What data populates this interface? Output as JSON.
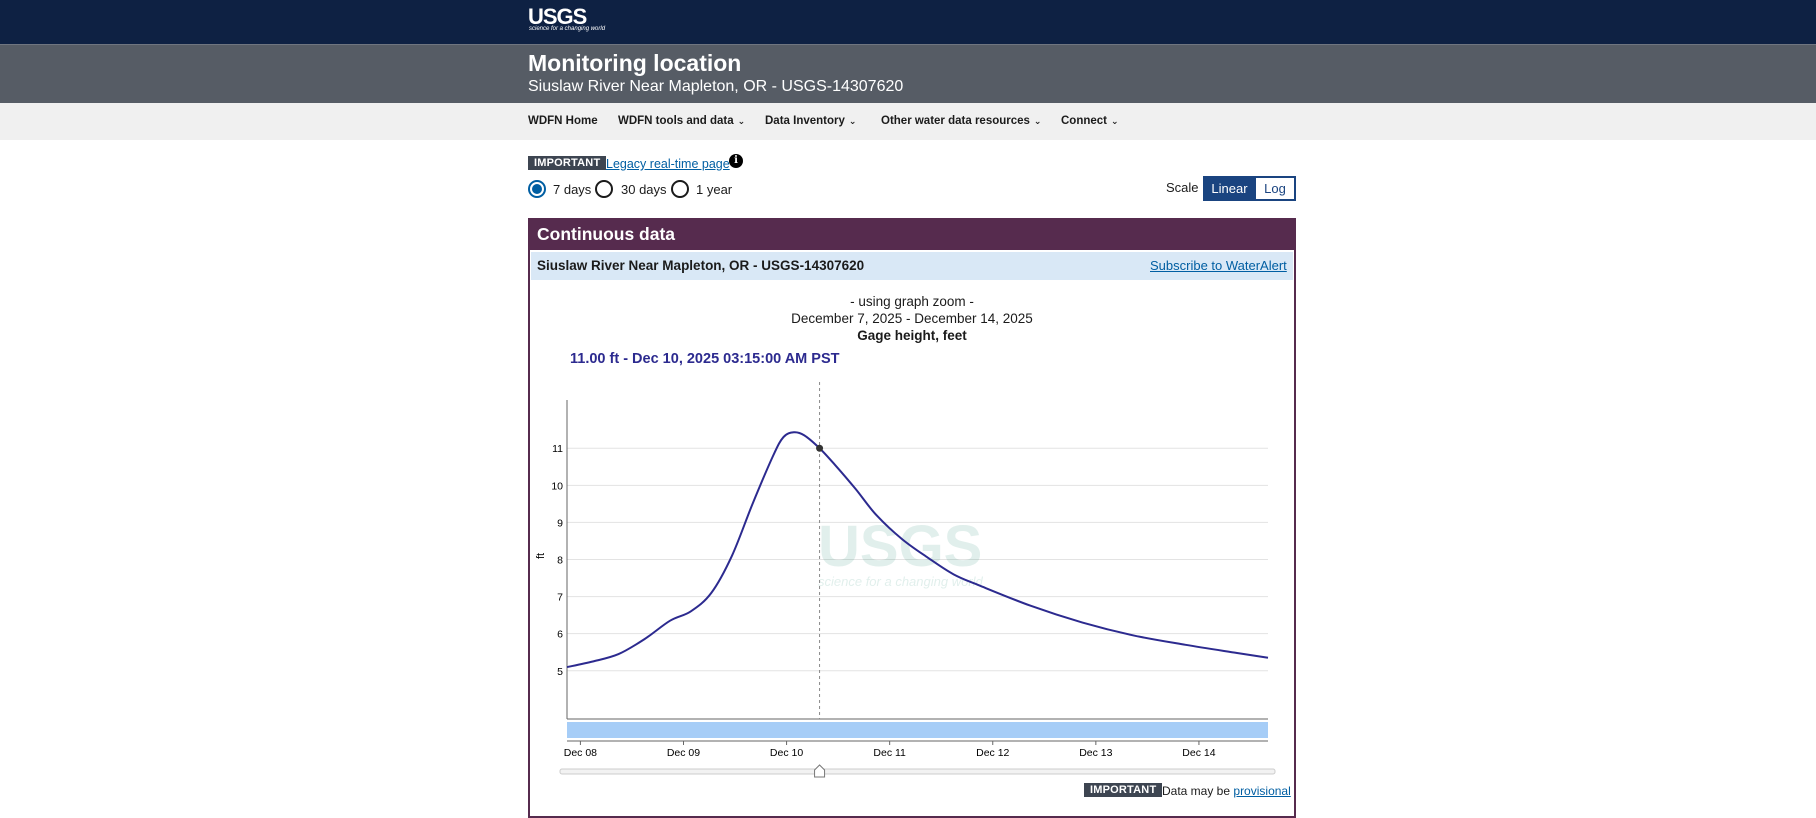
{
  "header": {
    "logo_text": "USGS",
    "logo_tagline": "science for a changing world",
    "title": "Monitoring location",
    "subtitle": "Siuslaw River Near Mapleton, OR - USGS-14307620"
  },
  "nav": {
    "items": [
      {
        "label": "WDFN Home",
        "dropdown": false
      },
      {
        "label": "WDFN tools and data",
        "dropdown": true
      },
      {
        "label": "Data Inventory",
        "dropdown": true
      },
      {
        "label": "Other water data resources",
        "dropdown": true
      },
      {
        "label": "Connect",
        "dropdown": true
      }
    ]
  },
  "notice": {
    "tag": "IMPORTANT",
    "link": "Legacy real-time page"
  },
  "period": {
    "options": [
      "7 days",
      "30 days",
      "1 year"
    ],
    "selected": "7 days"
  },
  "scale": {
    "label": "Scale",
    "options": [
      "Linear",
      "Log"
    ],
    "selected": "Linear"
  },
  "panel": {
    "title": "Continuous data",
    "site": "Siuslaw River Near Mapleton, OR - USGS-14307620",
    "subscribe": "Subscribe to WaterAlert"
  },
  "graph": {
    "zoom_note": "- using graph zoom -",
    "date_range": "December 7, 2025 - December 14, 2025",
    "parameter": "Gage height, feet",
    "readout": "11.00 ft - Dec 10, 2025 03:15:00 AM PST",
    "watermark": "USGS",
    "watermark_tagline": "science for a changing world"
  },
  "chart_data": {
    "type": "line",
    "title": "",
    "ylabel": "ft",
    "xlabel": "",
    "x_ticks": [
      "Dec 08",
      "Dec 09",
      "Dec 10",
      "Dec 11",
      "Dec 12",
      "Dec 13",
      "Dec 14"
    ],
    "y_ticks": [
      5,
      6,
      7,
      8,
      9,
      10,
      11
    ],
    "xlim": [
      0,
      6.8
    ],
    "ylim": [
      3.7,
      12.3
    ],
    "series": [
      {
        "color": "#2c2a8f",
        "x": [
          0,
          0.25,
          0.5,
          0.75,
          1.0,
          1.2,
          1.4,
          1.6,
          1.8,
          2.0,
          2.1,
          2.2,
          2.3,
          2.45,
          2.6,
          2.8,
          3.0,
          3.25,
          3.5,
          3.75,
          4.0,
          4.5,
          5.0,
          5.5,
          6.0,
          6.5,
          6.8
        ],
        "y": [
          5.1,
          5.25,
          5.45,
          5.85,
          6.35,
          6.6,
          7.1,
          8.1,
          9.5,
          10.8,
          11.3,
          11.43,
          11.35,
          11.0,
          10.55,
          9.9,
          9.2,
          8.55,
          8.05,
          7.6,
          7.3,
          6.75,
          6.3,
          5.95,
          5.7,
          5.48,
          5.35
        ]
      }
    ],
    "cursor": {
      "x": 2.45,
      "y": 11.0
    },
    "grid": true
  },
  "footer": {
    "tag": "IMPORTANT",
    "text": "Data may be",
    "link": "provisional"
  }
}
